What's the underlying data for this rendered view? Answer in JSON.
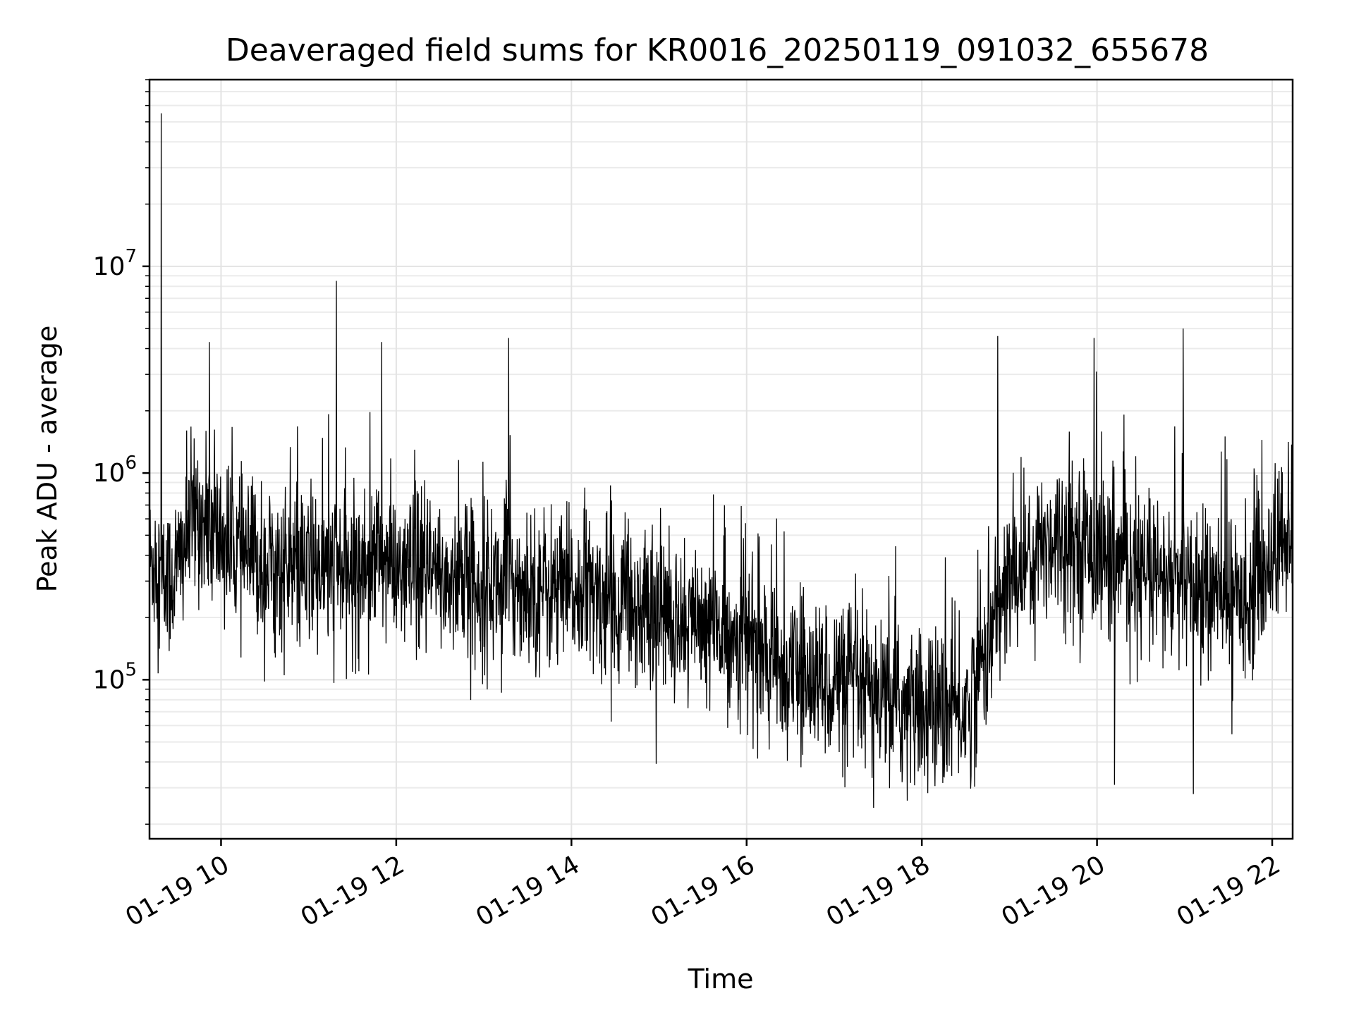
{
  "chart_data": {
    "type": "line",
    "title": "Deaveraged field sums for KR0016_20250119_091032_655678",
    "xlabel": "Time",
    "ylabel": "Peak ADU - average",
    "yscale": "log",
    "xlim": [
      "2025-01-19T09:11",
      "2025-01-19T22:14"
    ],
    "ylim": [
      17000,
      80000000
    ],
    "xtick_labels": [
      "01-19 10",
      "01-19 12",
      "01-19 14",
      "01-19 16",
      "01-19 18",
      "01-19 20",
      "01-19 22"
    ],
    "ytick_labels": [
      {
        "base": "10",
        "exp": "5",
        "value": 100000
      },
      {
        "base": "10",
        "exp": "6",
        "value": 1000000
      },
      {
        "base": "10",
        "exp": "7",
        "value": 10000000
      }
    ],
    "grid": true,
    "series": [
      {
        "color": "#000000",
        "x": [
          "2025-01-19T09:11",
          "2025-01-19T09:15",
          "2025-01-19T09:20",
          "2025-01-19T09:25",
          "2025-01-19T09:30",
          "2025-01-19T09:35",
          "2025-01-19T09:40",
          "2025-01-19T09:45",
          "2025-01-19T09:50",
          "2025-01-19T09:55",
          "2025-01-19T10:00",
          "2025-01-19T10:10",
          "2025-01-19T10:20",
          "2025-01-19T10:30",
          "2025-01-19T10:40",
          "2025-01-19T10:50",
          "2025-01-19T11:00",
          "2025-01-19T11:10",
          "2025-01-19T11:20",
          "2025-01-19T11:30",
          "2025-01-19T11:40",
          "2025-01-19T11:50",
          "2025-01-19T12:00",
          "2025-01-19T12:15",
          "2025-01-19T12:30",
          "2025-01-19T12:45",
          "2025-01-19T13:00",
          "2025-01-19T13:15",
          "2025-01-19T13:30",
          "2025-01-19T13:45",
          "2025-01-19T14:00",
          "2025-01-19T14:15",
          "2025-01-19T14:30",
          "2025-01-19T14:45",
          "2025-01-19T15:00",
          "2025-01-19T15:15",
          "2025-01-19T15:30",
          "2025-01-19T15:45",
          "2025-01-19T16:00",
          "2025-01-19T16:15",
          "2025-01-19T16:30",
          "2025-01-19T16:45",
          "2025-01-19T17:00",
          "2025-01-19T17:15",
          "2025-01-19T17:30",
          "2025-01-19T17:45",
          "2025-01-19T18:00",
          "2025-01-19T18:15",
          "2025-01-19T18:30",
          "2025-01-19T18:45",
          "2025-01-19T19:00",
          "2025-01-19T19:15",
          "2025-01-19T19:30",
          "2025-01-19T19:45",
          "2025-01-19T20:00",
          "2025-01-19T20:15",
          "2025-01-19T20:30",
          "2025-01-19T20:45",
          "2025-01-19T21:00",
          "2025-01-19T21:15",
          "2025-01-19T21:30",
          "2025-01-19T21:45",
          "2025-01-19T22:00",
          "2025-01-19T22:14"
        ],
        "y": [
          350000,
          400000,
          280000,
          300000,
          350000,
          450000,
          600000,
          650000,
          500000,
          520000,
          480000,
          420000,
          380000,
          360000,
          350000,
          330000,
          320000,
          340000,
          350000,
          320000,
          380000,
          400000,
          330000,
          320000,
          310000,
          300000,
          290000,
          300000,
          290000,
          270000,
          260000,
          250000,
          240000,
          230000,
          210000,
          200000,
          180000,
          170000,
          160000,
          120000,
          110000,
          100000,
          100000,
          90000,
          80000,
          75000,
          70000,
          70000,
          70000,
          150000,
          300000,
          400000,
          500000,
          480000,
          420000,
          350000,
          320000,
          300000,
          280000,
          260000,
          250000,
          260000,
          400000,
          550000
        ]
      }
    ],
    "notable_peaks": [
      {
        "x": "2025-01-19T09:19",
        "y": 55000000
      },
      {
        "x": "2025-01-19T11:19",
        "y": 8500000
      },
      {
        "x": "2025-01-19T20:59",
        "y": 5000000
      },
      {
        "x": "2025-01-19T18:52",
        "y": 4600000
      },
      {
        "x": "2025-01-19T13:17",
        "y": 4500000
      },
      {
        "x": "2025-01-19T11:50",
        "y": 4300000
      },
      {
        "x": "2025-01-19T09:52",
        "y": 4300000
      },
      {
        "x": "2025-01-19T19:58",
        "y": 4500000
      }
    ],
    "notable_troughs": [
      {
        "x": "2025-01-19T17:27",
        "y": 24000
      },
      {
        "x": "2025-01-19T17:50",
        "y": 26000
      },
      {
        "x": "2025-01-19T21:06",
        "y": 28000
      },
      {
        "x": "2025-01-19T20:12",
        "y": 31000
      }
    ]
  }
}
